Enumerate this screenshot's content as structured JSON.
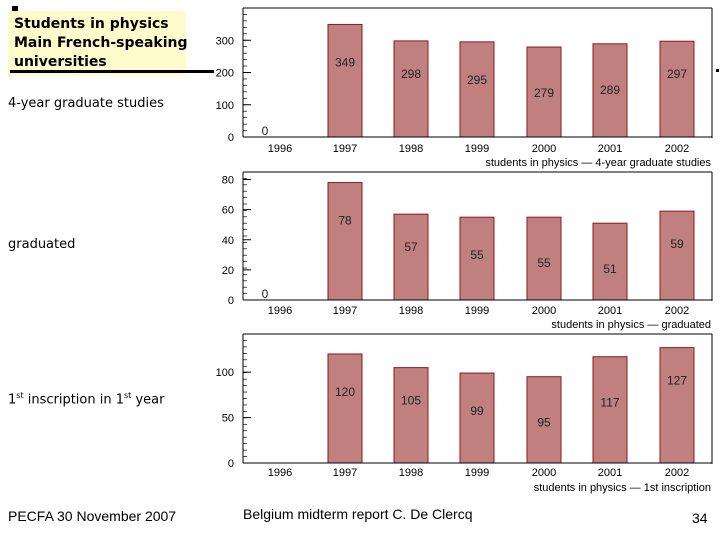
{
  "slide": {
    "title_lines": [
      "Students in physics",
      "Main French-speaking",
      "universities"
    ],
    "footer_left": "PECFA 30 November 2007",
    "footer_center": "Belgium midterm report C. De Clercq",
    "page_number": "34"
  },
  "colors": {
    "bar_fill": "#c08080",
    "bar_stroke": "#8b1a1a",
    "title_box": "#fffbcc"
  },
  "labels": {
    "graduate": "4-year graduate studies",
    "graduated": "graduated",
    "inscription_prefix": "1",
    "inscription_sup1": "st",
    "inscription_mid": " inscription in 1",
    "inscription_sup2": "st",
    "inscription_suffix": " year"
  },
  "chart_data": [
    {
      "type": "bar",
      "categories": [
        "1996",
        "1997",
        "1998",
        "1999",
        "2000",
        "2001",
        "2002"
      ],
      "values": [
        0,
        349,
        298,
        295,
        279,
        289,
        297
      ],
      "data_labels": [
        "0",
        "349",
        "298",
        "295",
        "279",
        "289",
        "297"
      ],
      "title": "students in physics — 4-year graduate studies",
      "ylim": [
        0,
        400
      ],
      "yticks": [
        0,
        100,
        200,
        300
      ],
      "ytick_labels": [
        "0",
        "100",
        "200",
        "300"
      ]
    },
    {
      "type": "bar",
      "categories": [
        "1996",
        "1997",
        "1998",
        "1999",
        "2000",
        "2001",
        "2002"
      ],
      "values": [
        0,
        78,
        57,
        55,
        55,
        51,
        59
      ],
      "data_labels": [
        "0",
        "78",
        "57",
        "55",
        "55",
        "51",
        "59"
      ],
      "title": "students in physics — graduated",
      "ylim": [
        0,
        85
      ],
      "yticks": [
        0,
        20,
        40,
        60,
        80
      ],
      "ytick_labels": [
        "0",
        "20",
        "40",
        "60",
        "80"
      ]
    },
    {
      "type": "bar",
      "categories": [
        "1996",
        "1997",
        "1998",
        "1999",
        "2000",
        "2001",
        "2002"
      ],
      "values": [
        0,
        120,
        105,
        99,
        95,
        117,
        127
      ],
      "data_labels": [
        "",
        "120",
        "105",
        "99",
        "95",
        "117",
        "127"
      ],
      "title": "students in physics — 1st inscription",
      "ylim": [
        0,
        142
      ],
      "yticks": [
        0,
        50,
        100
      ],
      "ytick_labels": [
        "0",
        "50",
        "100"
      ]
    }
  ]
}
